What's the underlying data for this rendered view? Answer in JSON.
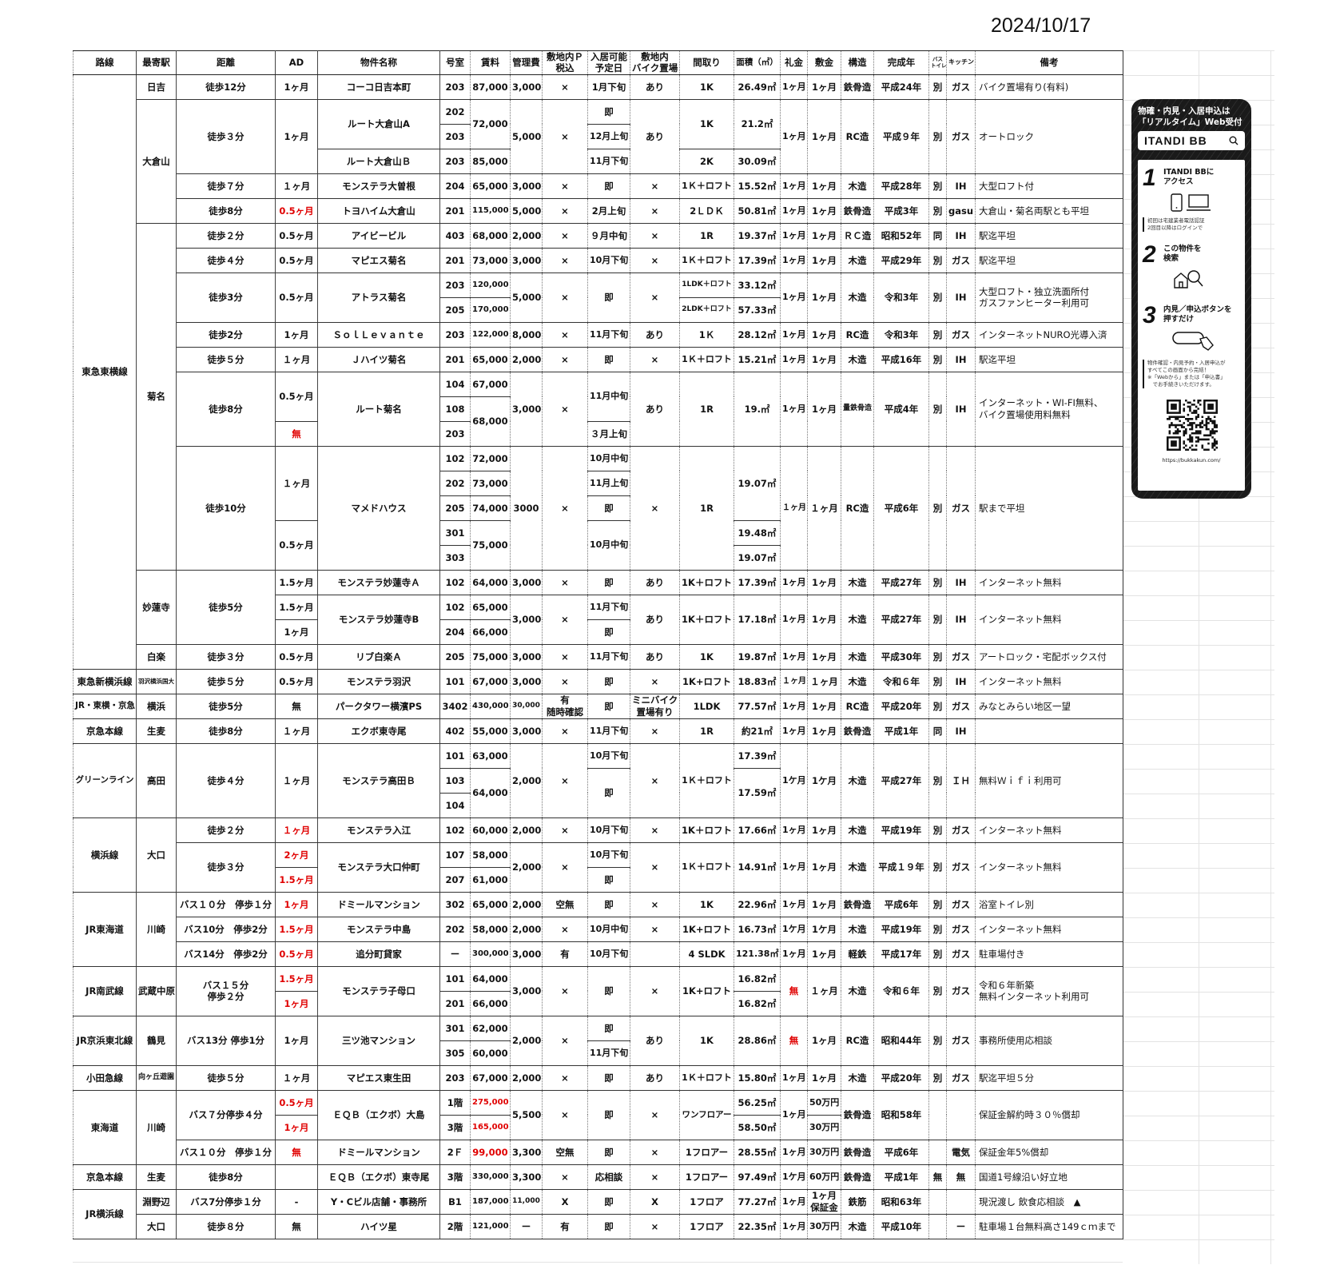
{
  "date": "2024/10/17",
  "columns": [
    "路線",
    "最寄駅",
    "距離",
    "AD",
    "物件名称",
    "号室",
    "賃料",
    "管理費",
    "敷地内Ｐ\n税込",
    "入居可能\n予定日",
    "敷地内\nバイク置場",
    "間取り",
    "面積（㎡）",
    "礼金",
    "敷金",
    "構造",
    "完成年",
    "バス\nトイレ",
    "キッチン",
    "備考"
  ],
  "rows": [
    [
      {
        "t": "東急東横線",
        "rs": 24
      },
      "日吉",
      "徒歩12分",
      "1ヶ月",
      "コーコ日吉本町",
      "203",
      "87,000",
      "3,000",
      "×",
      "1月下旬",
      "あり",
      "1K",
      "26.49㎡",
      "1ヶ月",
      "1ヶ月",
      "鉄骨造",
      "平成24年",
      "別",
      "ガス",
      "バイク置場有り(有料)"
    ],
    [
      {
        "t": "大倉山",
        "rs": 5
      },
      {
        "t": "徒歩３分",
        "rs": 3
      },
      {
        "t": "1ヶ月",
        "rs": 3
      },
      {
        "t": "ルート大倉山A",
        "rs": 2
      },
      "202",
      {
        "t": "72,000",
        "rs": 2
      },
      {
        "t": "5,000",
        "rs": 3
      },
      {
        "t": "×",
        "rs": 3
      },
      "即",
      {
        "t": "あり",
        "rs": 3
      },
      {
        "t": "1K",
        "rs": 2
      },
      {
        "t": "21.2㎡",
        "rs": 2
      },
      {
        "t": "1ヶ月",
        "rs": 3
      },
      {
        "t": "1ヶ月",
        "rs": 3
      },
      {
        "t": "RC造",
        "rs": 3
      },
      {
        "t": "平成９年",
        "rs": 3
      },
      {
        "t": "別",
        "rs": 3
      },
      {
        "t": "ガス",
        "rs": 3
      },
      {
        "t": "オートロック",
        "rs": 3
      }
    ],
    [
      "203",
      "12月上旬"
    ],
    [
      "ルート大倉山Ｂ",
      "203",
      "85,000",
      "11月下旬",
      "2K",
      "30.09㎡"
    ],
    [
      "徒歩７分",
      "１ヶ月",
      "モンステラ大曽根",
      "204",
      "65,000",
      "3,000",
      "×",
      "即",
      "×",
      "1Ｋ＋ロフト",
      "15.52㎡",
      "1ヶ月",
      "1ヶ月",
      "木造",
      "平成28年",
      "別",
      "IH",
      "大型ロフト付"
    ],
    [
      "徒歩8分",
      {
        "t": "0.5ヶ月",
        "red": true
      },
      "トヨハイム大倉山",
      "201",
      "115,000",
      "5,000",
      "×",
      "2月上旬",
      "×",
      "2ＬＤＫ",
      "50.81㎡",
      "1ヶ月",
      "1ヶ月",
      "鉄骨造",
      "平成3年",
      "別",
      "gasu",
      "大倉山・菊名両駅とも平坦"
    ],
    [
      {
        "t": "菊名",
        "rs": 14
      },
      "徒歩２分",
      "0.5ヶ月",
      "アイビービル",
      "403",
      "68,000",
      "2,000",
      "×",
      "９月中旬",
      "×",
      "1R",
      "19.37㎡",
      "1ヶ月",
      "1ヶ月",
      "ＲＣ造",
      "昭和52年",
      "同",
      "IH",
      "駅迄平坦"
    ],
    [
      "徒歩４分",
      "0.5ヶ月",
      "マピエス菊名",
      "201",
      "73,000",
      "3,000",
      "×",
      "10月下旬",
      "×",
      "1Ｋ＋ロフト",
      "17.39㎡",
      "1ヶ月",
      "1ヶ月",
      "木造",
      "平成29年",
      "別",
      "ガス",
      "駅迄平坦"
    ],
    [
      {
        "t": "徒歩3分",
        "rs": 2
      },
      {
        "t": "0.5ヶ月",
        "rs": 2
      },
      {
        "t": "アトラス菊名",
        "rs": 2
      },
      "203",
      "120,000",
      {
        "t": "5,000",
        "rs": 2
      },
      {
        "t": "×",
        "rs": 2
      },
      {
        "t": "即",
        "rs": 2
      },
      {
        "t": "×",
        "rs": 2
      },
      "1LDK＋ロフト",
      "33.12㎡",
      {
        "t": "1ヶ月",
        "rs": 2
      },
      {
        "t": "1ヶ月",
        "rs": 2
      },
      {
        "t": "木造",
        "rs": 2
      },
      {
        "t": "令和3年",
        "rs": 2
      },
      {
        "t": "別",
        "rs": 2
      },
      {
        "t": "IH",
        "rs": 2
      },
      {
        "t": "大型ロフト・独立洗面所付\nガスファンヒーター利用可",
        "rs": 2
      }
    ],
    [
      "205",
      "170,000",
      "2LDK＋ロフト",
      "57.33㎡"
    ],
    [
      "徒歩2分",
      "1ヶ月",
      "ＳｏｌＬｅｖａｎｔｅ",
      "203",
      "122,000",
      "8,000",
      "×",
      "11月下旬",
      "あり",
      "1Ｋ",
      "28.12㎡",
      "1ヶ月",
      "1ヶ月",
      "RC造",
      "令和3年",
      "別",
      "ガス",
      "インターネットNURO光導入済"
    ],
    [
      "徒歩５分",
      "１ヶ月",
      "Ｊハイツ菊名",
      "201",
      "65,000",
      "2,000",
      "×",
      "即",
      "×",
      "1Ｋ＋ロフト",
      "15.21㎡",
      "1ヶ月",
      "1ヶ月",
      "木造",
      "平成16年",
      "別",
      "IH",
      "駅迄平坦"
    ],
    [
      {
        "t": "徒歩8分",
        "rs": 3
      },
      {
        "t": "0.5ヶ月",
        "rs": 2
      },
      {
        "t": "ルート菊名",
        "rs": 3
      },
      "104",
      "67,000",
      {
        "t": "3,000",
        "rs": 3
      },
      {
        "t": "×",
        "rs": 3
      },
      {
        "t": "11月中旬",
        "rs": 2
      },
      {
        "t": "あり",
        "rs": 3
      },
      {
        "t": "1R",
        "rs": 3
      },
      {
        "t": "19.㎡",
        "rs": 3
      },
      {
        "t": "1ヶ月",
        "rs": 3
      },
      {
        "t": "1ヶ月",
        "rs": 3
      },
      {
        "t": "量鉄骨造",
        "rs": 3
      },
      {
        "t": "平成4年",
        "rs": 3
      },
      {
        "t": "別",
        "rs": 3
      },
      {
        "t": "IH",
        "rs": 3
      },
      {
        "t": "インターネット・WI-FI無料、\nバイク置場使用料無料",
        "rs": 3
      }
    ],
    [
      "108",
      {
        "t": "68,000",
        "rs": 2
      }
    ],
    [
      {
        "t": "無",
        "red": true
      },
      "203",
      "３月上旬"
    ],
    [
      {
        "t": "徒歩10分",
        "rs": 5
      },
      {
        "t": "１ヶ月",
        "rs": 3
      },
      {
        "t": "マメドハウス",
        "rs": 5
      },
      "102",
      "72,000",
      {
        "t": "3000",
        "rs": 5
      },
      {
        "t": "×",
        "rs": 5
      },
      "10月中旬",
      {
        "t": "×",
        "rs": 5
      },
      {
        "t": "1R",
        "rs": 5
      },
      {
        "t": "19.07㎡",
        "rs": 3
      },
      {
        "t": "１ヶ月",
        "rs": 5
      },
      {
        "t": "１ヶ月",
        "rs": 5
      },
      {
        "t": "RC造",
        "rs": 5
      },
      {
        "t": "平成6年",
        "rs": 5
      },
      {
        "t": "別",
        "rs": 5
      },
      {
        "t": "ガス",
        "rs": 5
      },
      {
        "t": "駅まで平坦",
        "rs": 5
      }
    ],
    [
      "202",
      "73,000",
      "11月上旬"
    ],
    [
      "205",
      "74,000",
      "即"
    ],
    [
      {
        "t": "0.5ヶ月",
        "rs": 2
      },
      "301",
      {
        "t": "75,000",
        "rs": 2
      },
      {
        "t": "10月中旬",
        "rs": 2
      },
      "19.48㎡"
    ],
    [
      "303",
      "19.07㎡"
    ],
    [
      {
        "t": "妙蓮寺",
        "rs": 3
      },
      {
        "t": "徒歩5分",
        "rs": 3
      },
      "1.5ヶ月",
      "モンステラ妙蓮寺Ａ",
      "102",
      "64,000",
      "3,000",
      "×",
      "即",
      "あり",
      "1K＋ロフト",
      "17.39㎡",
      "1ヶ月",
      "1ヶ月",
      "木造",
      "平成27年",
      "別",
      "IH",
      "インターネット無料"
    ],
    [
      "1.5ヶ月",
      {
        "t": "モンステラ妙蓮寺B",
        "rs": 2
      },
      "102",
      "65,000",
      {
        "t": "3,000",
        "rs": 2
      },
      {
        "t": "×",
        "rs": 2
      },
      "11月下旬",
      {
        "t": "あり",
        "rs": 2
      },
      {
        "t": "1K＋ロフト",
        "rs": 2
      },
      {
        "t": "17.18㎡",
        "rs": 2
      },
      {
        "t": "1ヶ月",
        "rs": 2
      },
      {
        "t": "1ヶ月",
        "rs": 2
      },
      {
        "t": "木造",
        "rs": 2
      },
      {
        "t": "平成27年",
        "rs": 2
      },
      {
        "t": "別",
        "rs": 2
      },
      {
        "t": "IH",
        "rs": 2
      },
      {
        "t": "インターネット無料",
        "rs": 2
      }
    ],
    [
      "1ヶ月",
      "204",
      "66,000",
      "即"
    ],
    [
      "白楽",
      "徒歩３分",
      "0.5ヶ月",
      "リブ白楽Ａ",
      "205",
      "75,000",
      "3,000",
      "×",
      "11月下旬",
      "あり",
      "1K",
      "19.87㎡",
      "1ヶ月",
      "1ヶ月",
      "木造",
      "平成30年",
      "別",
      "ガス",
      "アートロック・宅配ボックス付"
    ],
    [
      "東急新横浜線",
      "羽沢横浜国大",
      "徒歩５分",
      "0.5ヶ月",
      "モンステラ羽沢",
      "101",
      "67,000",
      "3,000",
      "×",
      "即",
      "×",
      "1K+ロフト",
      "18.83㎡",
      "１ヶ月",
      "１ヶ月",
      "木造",
      "令和６年",
      "別",
      "IH",
      "インターネット無料"
    ],
    [
      "JR・東横・京急",
      "横浜",
      "徒歩5分",
      "無",
      "パークタワー横濱PS",
      "3402",
      "430,000",
      "30,000",
      "有\n随時確認",
      "即",
      "ミニバイク\n置場有り",
      "1LDK",
      "77.57㎡",
      "1ヶ月",
      "1ヶ月",
      "RC造",
      "平成20年",
      "別",
      "ガス",
      "みなとみらい地区一望"
    ],
    [
      "京急本線",
      "生麦",
      "徒歩8分",
      "１ヶ月",
      "エクボ東寺尾",
      "402",
      "55,000",
      "3,000",
      "×",
      "11月下旬",
      "×",
      "1R",
      "約21㎡",
      "1ヶ月",
      "1ヶ月",
      "鉄骨造",
      "平成1年",
      "同",
      "IH",
      ""
    ],
    [
      {
        "t": "グリーンライン",
        "rs": 3
      },
      {
        "t": "高田",
        "rs": 3
      },
      {
        "t": "徒歩４分",
        "rs": 3
      },
      {
        "t": "１ヶ月",
        "rs": 3
      },
      {
        "t": "モンステラ高田Ｂ",
        "rs": 3
      },
      "101",
      "63,000",
      {
        "t": "2,000",
        "rs": 3
      },
      {
        "t": "×",
        "rs": 3
      },
      "10月下旬",
      {
        "t": "×",
        "rs": 3
      },
      {
        "t": "1Ｋ＋ロフト",
        "rs": 3
      },
      "17.39㎡",
      {
        "t": "1ケ月",
        "rs": 3
      },
      {
        "t": "1ケ月",
        "rs": 3
      },
      {
        "t": "木造",
        "rs": 3
      },
      {
        "t": "平成27年",
        "rs": 3
      },
      {
        "t": "別",
        "rs": 3
      },
      {
        "t": "ＩＨ",
        "rs": 3
      },
      {
        "t": "無料Ｗｉｆｉ利用可",
        "rs": 3
      }
    ],
    [
      "103",
      {
        "t": "64,000",
        "rs": 2
      },
      {
        "t": "即",
        "rs": 2
      },
      {
        "t": "17.59㎡",
        "rs": 2
      }
    ],
    [
      "104"
    ],
    [
      {
        "t": "横浜線",
        "rs": 3
      },
      {
        "t": "大口",
        "rs": 3
      },
      "徒歩２分",
      {
        "t": "１ヶ月",
        "red": true
      },
      "モンステラ入江",
      "102",
      "60,000",
      "2,000",
      "×",
      "10月下旬",
      "×",
      "1K＋ロフト",
      "17.66㎡",
      "1ヶ月",
      "1ヶ月",
      "木造",
      "平成19年",
      "別",
      "ガス",
      "インターネット無料"
    ],
    [
      {
        "t": "徒歩３分",
        "rs": 2
      },
      {
        "t": "2ヶ月",
        "red": true
      },
      {
        "t": "モンステラ大口仲町",
        "rs": 2
      },
      "107",
      "58,000",
      {
        "t": "2,000",
        "rs": 2
      },
      {
        "t": "×",
        "rs": 2
      },
      "10月下旬",
      {
        "t": "×",
        "rs": 2
      },
      {
        "t": "1Ｋ＋ロフト",
        "rs": 2
      },
      {
        "t": "14.91㎡",
        "rs": 2
      },
      {
        "t": "1ヶ月",
        "rs": 2
      },
      {
        "t": "1ヶ月",
        "rs": 2
      },
      {
        "t": "木造",
        "rs": 2
      },
      {
        "t": "平成１９年",
        "rs": 2
      },
      {
        "t": "別",
        "rs": 2
      },
      {
        "t": "ガス",
        "rs": 2
      },
      {
        "t": "インターネット無料",
        "rs": 2
      }
    ],
    [
      {
        "t": "1.5ヶ月",
        "red": true
      },
      "207",
      "61,000",
      "即"
    ],
    [
      {
        "t": "JR東海道",
        "rs": 3
      },
      {
        "t": "川崎",
        "rs": 3
      },
      "バス１０分　停歩１分",
      {
        "t": "1ヶ月",
        "red": true
      },
      "ドミールマンション",
      "302",
      "65,000",
      "2,000",
      "空無",
      "即",
      "×",
      "1K",
      "22.96㎡",
      "1ヶ月",
      "1ヶ月",
      "鉄骨造",
      "平成6年",
      "別",
      "ガス",
      "浴室トイレ別"
    ],
    [
      "バス10分　停歩2分",
      {
        "t": "1.5ヶ月",
        "red": true
      },
      "モンステラ中島",
      "202",
      "58,000",
      "2,000",
      "×",
      "10月中旬",
      "×",
      "1K+ロフト",
      "16.73㎡",
      "1ケ月",
      "1ケ月",
      "木造",
      "平成19年",
      "別",
      "ガス",
      "インターネット無料"
    ],
    [
      "バス14分　停歩2分",
      {
        "t": "0.5ヶ月",
        "red": true
      },
      "追分町貸家",
      "ー",
      "300,000",
      "3,000",
      "有",
      "10月下旬",
      "",
      "4 SLDK",
      "121.38㎡",
      "1ヶ月",
      "1ヶ月",
      "軽鉄",
      "平成17年",
      "別",
      "ガス",
      "駐車場付き"
    ],
    [
      {
        "t": "JR南武線",
        "rs": 2
      },
      {
        "t": "武蔵中原",
        "rs": 2
      },
      {
        "t": "バス１５分\n停歩２分",
        "rs": 2
      },
      {
        "t": "1.5ヶ月",
        "red": true
      },
      {
        "t": "モンステラ子母口",
        "rs": 2
      },
      "101",
      "64,000",
      {
        "t": "3,000",
        "rs": 2
      },
      {
        "t": "×",
        "rs": 2
      },
      {
        "t": "即",
        "rs": 2
      },
      {
        "t": "×",
        "rs": 2
      },
      {
        "t": "1K+ロフト",
        "rs": 2
      },
      "16.82㎡",
      {
        "t": "無",
        "rs": 2,
        "red": true
      },
      {
        "t": "１ヶ月",
        "rs": 2
      },
      {
        "t": "木造",
        "rs": 2
      },
      {
        "t": "令和６年",
        "rs": 2
      },
      {
        "t": "別",
        "rs": 2
      },
      {
        "t": "ガス",
        "rs": 2
      },
      {
        "t": "令和６年新築\n無料インターネット利用可",
        "rs": 2
      }
    ],
    [
      {
        "t": "1ヶ月",
        "red": true
      },
      "201",
      "66,000",
      "16.82㎡"
    ],
    [
      {
        "t": "JR京浜東北線",
        "rs": 2
      },
      {
        "t": "鶴見",
        "rs": 2
      },
      {
        "t": "バス13分 停歩1分",
        "rs": 2
      },
      {
        "t": "1ヶ月",
        "rs": 2
      },
      {
        "t": "三ツ池マンション",
        "rs": 2
      },
      "301",
      "62,000",
      {
        "t": "2,000",
        "rs": 2
      },
      {
        "t": "×",
        "rs": 2
      },
      "即",
      {
        "t": "あり",
        "rs": 2
      },
      {
        "t": "1K",
        "rs": 2
      },
      {
        "t": "28.86㎡",
        "rs": 2
      },
      {
        "t": "無",
        "rs": 2,
        "red": true
      },
      {
        "t": "1ヶ月",
        "rs": 2
      },
      {
        "t": "RC造",
        "rs": 2
      },
      {
        "t": "昭和44年",
        "rs": 2
      },
      {
        "t": "別",
        "rs": 2
      },
      {
        "t": "ガス",
        "rs": 2
      },
      {
        "t": "事務所使用応相談",
        "rs": 2
      }
    ],
    [
      "305",
      "60,000",
      "11月下旬"
    ],
    [
      "小田急線",
      "向ヶ丘遊園",
      "徒歩５分",
      "１ヶ月",
      "マピエス東生田",
      "203",
      "67,000",
      "2,000",
      "×",
      "即",
      "あり",
      "1Ｋ＋ロフト",
      "15.80㎡",
      "1ヶ月",
      "1ヶ月",
      "木造",
      "平成20年",
      "別",
      "ガス",
      "駅迄平坦５分"
    ],
    [
      {
        "t": "東海道",
        "rs": 3
      },
      {
        "t": "川崎",
        "rs": 3
      },
      {
        "t": "バス７分停歩４分",
        "rs": 2
      },
      {
        "t": "0.5ヶ月",
        "red": true
      },
      {
        "t": "ＥＱＢ（エクボ）大島",
        "rs": 2
      },
      "1階",
      {
        "t": "275,000",
        "red": true
      },
      {
        "t": "5,500",
        "rs": 2
      },
      {
        "t": "×",
        "rs": 2
      },
      {
        "t": "即",
        "rs": 2
      },
      {
        "t": "×",
        "rs": 2
      },
      {
        "t": "ワンフロアー",
        "rs": 2
      },
      "56.25㎡",
      {
        "t": "1ヶ月",
        "rs": 2
      },
      "50万円",
      {
        "t": "鉄骨造",
        "rs": 2
      },
      {
        "t": "昭和58年",
        "rs": 2
      },
      {
        "t": "",
        "rs": 2
      },
      {
        "t": "",
        "rs": 2
      },
      {
        "t": "保証金解約時３０％償却",
        "rs": 2
      }
    ],
    [
      {
        "t": "1ヶ月",
        "red": true
      },
      "3階",
      {
        "t": "165,000",
        "red": true
      },
      "58.50㎡",
      "30万円"
    ],
    [
      "バス１０分　停歩１分",
      {
        "t": "無",
        "red": true
      },
      "ドミールマンション",
      "2Ｆ",
      {
        "t": "99,000",
        "red": true
      },
      "3,300",
      "空無",
      "即",
      "×",
      "1フロアー",
      "28.55㎡",
      "1ヶ月",
      "30万円",
      "鉄骨造",
      "平成6年",
      "",
      "電気",
      "保証金年5%償却"
    ],
    [
      "京急本線",
      "生麦",
      "徒歩8分",
      "",
      "ＥＱＢ（エクボ）東寺尾",
      "3階",
      "330,000",
      "3,300",
      "×",
      "応相談",
      "×",
      "1フロアー",
      "97.49㎡",
      "1ケ月",
      "60万円",
      "鉄骨造",
      "平成1年",
      "無",
      "無",
      "国道1号線沿い好立地"
    ],
    [
      {
        "t": "JR横浜線",
        "rs": 2
      },
      "淵野辺",
      "バス7分停歩１分",
      "-",
      "Y・Cビル店舗・事務所",
      "B1",
      "187,000",
      "11,000",
      "X",
      "即",
      "X",
      "1フロア",
      "77.27㎡",
      "1ヶ月",
      "1ヶ月\n保証金",
      "鉄筋",
      "昭和63年",
      "",
      "",
      "現況渡し 飲食応相談　▲"
    ],
    [
      "大口",
      "徒歩８分",
      "無",
      "ハイツ星",
      "2階",
      "121,000",
      "ー",
      "有",
      "即",
      "×",
      "1フロア",
      "22.35㎡",
      "1ヶ月",
      "30万円",
      "木造",
      "平成10年",
      "",
      "ー",
      "駐車場１台無料高さ149ｃｍまで"
    ]
  ],
  "colors": {
    "highlight_red": "#e00000",
    "card_dark": "#1a1a1a"
  },
  "itandi_card": {
    "headline": "物確・内見・入居申込は\n「リアルタイム」Web受付",
    "search_label": "ITANDI BB",
    "steps": [
      {
        "num": "1",
        "text": "ITANDI BBに\nアクセス"
      },
      {
        "num": "2",
        "text": "この物件を\n検索"
      },
      {
        "num": "3",
        "text": "内見／申込ボタンを\n押すだけ"
      }
    ],
    "note1": "初回は宅建業者電話認証\n2回目以降はログインで",
    "note2": "物件確認・内見予約・入居申込が\nすべてこの画面から完結！\n※「Webから」または「申込書」\n　でお手続きいただけます。",
    "url": "https://bukkakun.com/"
  }
}
